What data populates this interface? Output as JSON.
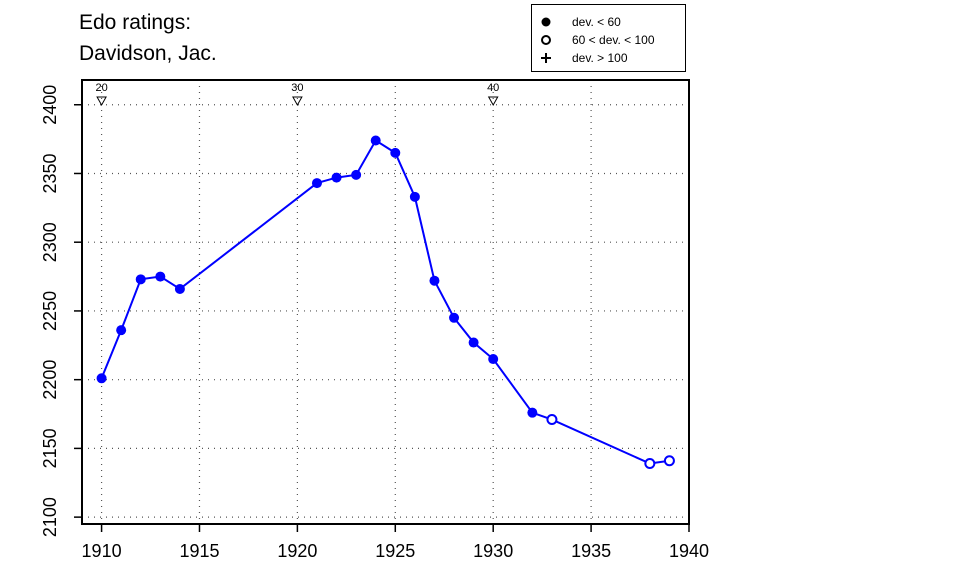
{
  "title_line1": "Edo ratings:",
  "title_line2": "Davidson, Jac.",
  "legend": [
    {
      "symbol": "filled-circle",
      "label": "dev. < 60"
    },
    {
      "symbol": "open-circle",
      "label": "60 < dev. < 100"
    },
    {
      "symbol": "plus",
      "label": "dev. > 100"
    }
  ],
  "colors": {
    "series": "#0000ff",
    "axis": "#000000",
    "grid": "#555555"
  },
  "chart_data": {
    "type": "line",
    "xlim": [
      1909,
      1940
    ],
    "ylim": [
      2095,
      2418
    ],
    "x_ticks": [
      1910,
      1915,
      1920,
      1925,
      1930,
      1935,
      1940
    ],
    "y_ticks": [
      2100,
      2150,
      2200,
      2250,
      2300,
      2350,
      2400
    ],
    "grid": true,
    "legend_position": "top-right",
    "age_markers": [
      {
        "year": 1910,
        "label": "20"
      },
      {
        "year": 1920,
        "label": "30"
      },
      {
        "year": 1930,
        "label": "40"
      }
    ],
    "series": [
      {
        "points": [
          {
            "x": 1910,
            "y": 2201,
            "dev": "low"
          },
          {
            "x": 1911,
            "y": 2236,
            "dev": "low"
          },
          {
            "x": 1912,
            "y": 2273,
            "dev": "low"
          },
          {
            "x": 1913,
            "y": 2275,
            "dev": "low"
          },
          {
            "x": 1914,
            "y": 2266,
            "dev": "low"
          },
          {
            "x": 1921,
            "y": 2343,
            "dev": "low"
          },
          {
            "x": 1922,
            "y": 2347,
            "dev": "low"
          },
          {
            "x": 1923,
            "y": 2349,
            "dev": "low"
          },
          {
            "x": 1924,
            "y": 2374,
            "dev": "low"
          },
          {
            "x": 1925,
            "y": 2365,
            "dev": "low"
          },
          {
            "x": 1926,
            "y": 2333,
            "dev": "low"
          },
          {
            "x": 1927,
            "y": 2272,
            "dev": "low"
          },
          {
            "x": 1928,
            "y": 2245,
            "dev": "low"
          },
          {
            "x": 1929,
            "y": 2227,
            "dev": "low"
          },
          {
            "x": 1930,
            "y": 2215,
            "dev": "low"
          },
          {
            "x": 1932,
            "y": 2176,
            "dev": "low"
          },
          {
            "x": 1933,
            "y": 2171,
            "dev": "medium"
          },
          {
            "x": 1938,
            "y": 2139,
            "dev": "medium"
          },
          {
            "x": 1939,
            "y": 2141,
            "dev": "medium"
          }
        ]
      }
    ]
  }
}
